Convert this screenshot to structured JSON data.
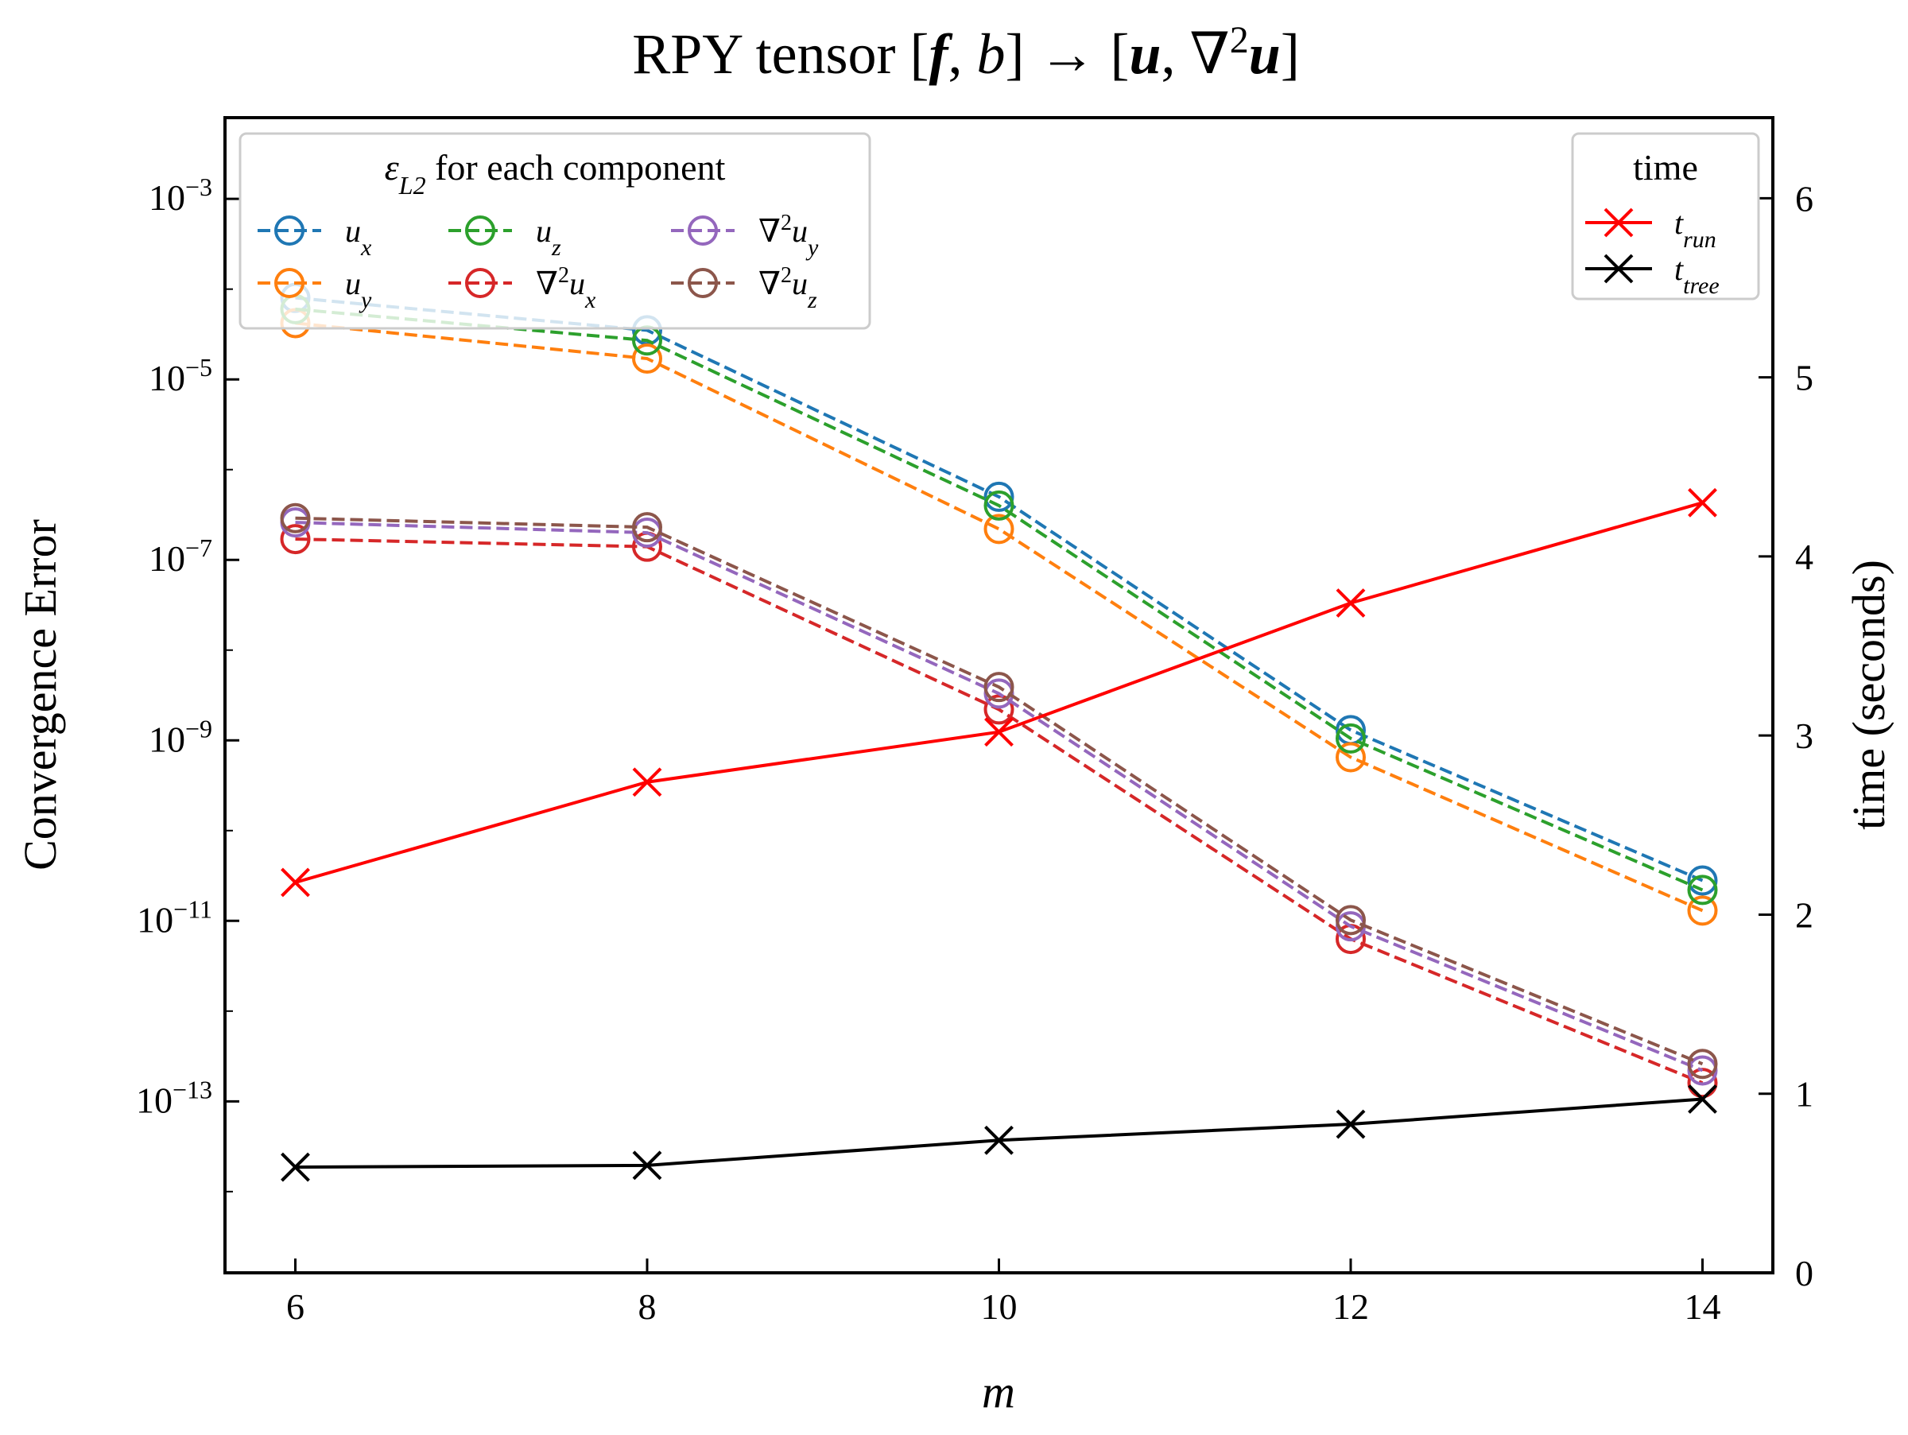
{
  "chart_data": {
    "type": "line",
    "title": "RPY tensor [f, b] → [u, ∇²u]",
    "title_parts": {
      "prefix": "RPY tensor [",
      "f": "f",
      "sep": ", ",
      "b": "b",
      "arrow": "] → [",
      "u": "u",
      "comma": ", ",
      "nabla": "∇",
      "exp": "2",
      "u2": "u",
      "close": "]"
    },
    "xlabel": "m",
    "ylabel_left": "Convergence Error",
    "ylabel_right": "time (seconds)",
    "x": [
      6,
      8,
      10,
      12,
      14
    ],
    "xlim": [
      5.6,
      14.4
    ],
    "left_axis": {
      "scale": "log",
      "ylim_exp": [
        -14.9,
        -2.1
      ],
      "ticks": [
        {
          "exp": -3,
          "label_base": "10",
          "label_exp": "−3"
        },
        {
          "exp": -5,
          "label_base": "10",
          "label_exp": "−5"
        },
        {
          "exp": -7,
          "label_base": "10",
          "label_exp": "−7"
        },
        {
          "exp": -9,
          "label_base": "10",
          "label_exp": "−9"
        },
        {
          "exp": -11,
          "label_base": "10",
          "label_exp": "−11"
        },
        {
          "exp": -13,
          "label_base": "10",
          "label_exp": "−13"
        }
      ]
    },
    "right_axis": {
      "scale": "linear",
      "ylim": [
        0,
        6.45
      ],
      "ticks": [
        0,
        1,
        2,
        3,
        4,
        5,
        6
      ],
      "tick_labels": [
        "0",
        "1",
        "2",
        "3",
        "4",
        "5",
        "6"
      ]
    },
    "x_ticks": [
      6,
      8,
      10,
      12,
      14
    ],
    "x_tick_labels": [
      "6",
      "8",
      "10",
      "12",
      "14"
    ],
    "error_series": [
      {
        "name": "u_x",
        "base": "u",
        "sub": "x",
        "nabla": false,
        "color": "#1f77b4",
        "values": [
          8e-05,
          3.5e-05,
          5e-07,
          1.3e-09,
          2.8e-11
        ]
      },
      {
        "name": "u_y",
        "base": "u",
        "sub": "y",
        "nabla": false,
        "color": "#ff7f0e",
        "values": [
          4.2e-05,
          1.7e-05,
          2.2e-07,
          6.5e-10,
          1.3e-11
        ]
      },
      {
        "name": "u_z",
        "base": "u",
        "sub": "z",
        "nabla": false,
        "color": "#2ca02c",
        "values": [
          6e-05,
          2.7e-05,
          4e-07,
          1.05e-09,
          2.2e-11
        ]
      },
      {
        "name": "∇²u_x",
        "base": "u",
        "sub": "x",
        "nabla": true,
        "color": "#d62728",
        "values": [
          1.7e-07,
          1.4e-07,
          2.2e-09,
          6.3e-12,
          1.6e-13
        ]
      },
      {
        "name": "∇²u_y",
        "base": "u",
        "sub": "y",
        "nabla": true,
        "color": "#9467bd",
        "values": [
          2.6e-07,
          2e-07,
          3.3e-09,
          8.7e-12,
          2.2e-13
        ]
      },
      {
        "name": "∇²u_z",
        "base": "u",
        "sub": "z",
        "nabla": true,
        "color": "#8c564b",
        "values": [
          2.9e-07,
          2.3e-07,
          3.9e-09,
          1.02e-11,
          2.6e-13
        ]
      }
    ],
    "time_series": [
      {
        "name": "t_run",
        "base": "t",
        "sub": "run",
        "color": "#ff0000",
        "values": [
          2.18,
          2.74,
          3.02,
          3.74,
          4.3
        ]
      },
      {
        "name": "t_tree",
        "base": "t",
        "sub": "tree",
        "color": "#000000",
        "values": [
          0.59,
          0.6,
          0.74,
          0.83,
          0.97
        ]
      }
    ],
    "legend_error": {
      "title_sym": "ε",
      "title_sub": "L2",
      "title_rest": " for each component",
      "placement": "top-left"
    },
    "legend_time": {
      "title": "time",
      "placement": "top-right"
    }
  }
}
